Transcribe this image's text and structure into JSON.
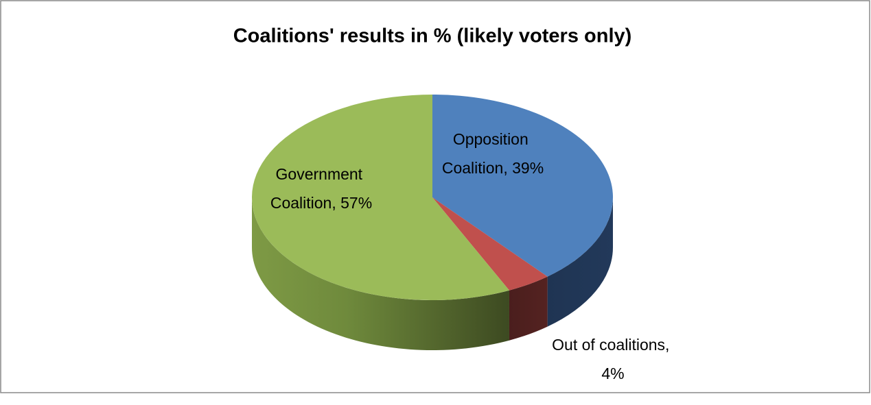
{
  "chart_data": {
    "type": "pie",
    "title": "Coalitions' results in %  (likely voters only)",
    "values": [
      39,
      4,
      57
    ],
    "value_labels": [
      "Opposition Coalition, 39%",
      "Out of coalitions, 4%",
      "Government Coalition, 57%"
    ],
    "colors": [
      "#4f81bd",
      "#c0504d",
      "#9bbb59"
    ]
  }
}
